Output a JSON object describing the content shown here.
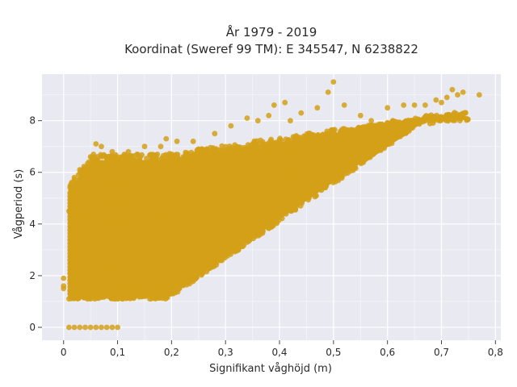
{
  "chart_data": {
    "type": "scatter",
    "title": "År 1979 - 2019",
    "subtitle": "Koordinat (Sweref 99 TM): E 345547, N 6238822",
    "xlabel": "Signifikant våghöjd (m)",
    "ylabel": "Vågperiod (s)",
    "xlim": [
      -0.04,
      0.81
    ],
    "ylim": [
      -0.5,
      9.8
    ],
    "xticks": [
      0,
      0.1,
      0.2,
      0.3,
      0.4,
      0.5,
      0.6,
      0.7,
      0.8
    ],
    "xtick_labels": [
      "0",
      "0,1",
      "0,2",
      "0,3",
      "0,4",
      "0,5",
      "0,6",
      "0,7",
      "0,8"
    ],
    "yticks": [
      0,
      2,
      4,
      6,
      8
    ],
    "ytick_labels": [
      "0",
      "2",
      "4",
      "6",
      "8"
    ],
    "grid": true,
    "legend": "none",
    "colors": {
      "marker": "#d4a017",
      "plot_background": "#e9e9f1",
      "grid": "#ffffff"
    },
    "series": [
      {
        "points": [
          [
            0.0,
            1.9
          ],
          [
            0.0,
            1.6
          ],
          [
            0.0,
            1.5
          ],
          [
            0.01,
            0.0
          ],
          [
            0.02,
            0.0
          ],
          [
            0.03,
            0.0
          ],
          [
            0.04,
            0.0
          ],
          [
            0.05,
            0.0
          ],
          [
            0.06,
            0.0
          ],
          [
            0.07,
            0.0
          ],
          [
            0.08,
            0.0
          ],
          [
            0.09,
            0.0
          ],
          [
            0.1,
            0.0
          ],
          [
            0.01,
            4.5
          ],
          [
            0.01,
            1.1
          ],
          [
            0.02,
            5.8
          ],
          [
            0.03,
            6.1
          ],
          [
            0.05,
            6.6
          ],
          [
            0.06,
            7.1
          ],
          [
            0.07,
            7.0
          ],
          [
            0.09,
            6.8
          ],
          [
            0.12,
            6.8
          ],
          [
            0.15,
            7.0
          ],
          [
            0.18,
            7.0
          ],
          [
            0.19,
            7.3
          ],
          [
            0.21,
            7.2
          ],
          [
            0.24,
            7.2
          ],
          [
            0.28,
            7.5
          ],
          [
            0.31,
            7.8
          ],
          [
            0.34,
            8.1
          ],
          [
            0.36,
            8.0
          ],
          [
            0.38,
            8.2
          ],
          [
            0.39,
            8.6
          ],
          [
            0.41,
            8.7
          ],
          [
            0.42,
            8.0
          ],
          [
            0.44,
            8.3
          ],
          [
            0.47,
            8.5
          ],
          [
            0.49,
            9.1
          ],
          [
            0.5,
            9.5
          ],
          [
            0.52,
            8.6
          ],
          [
            0.55,
            8.2
          ],
          [
            0.57,
            8.0
          ],
          [
            0.6,
            8.5
          ],
          [
            0.61,
            8.0
          ],
          [
            0.63,
            8.6
          ],
          [
            0.65,
            8.6
          ],
          [
            0.67,
            8.6
          ],
          [
            0.69,
            8.8
          ],
          [
            0.7,
            8.7
          ],
          [
            0.71,
            8.9
          ],
          [
            0.72,
            9.2
          ],
          [
            0.73,
            9.0
          ],
          [
            0.74,
            9.1
          ],
          [
            0.77,
            9.0
          ],
          [
            0.05,
            1.1
          ],
          [
            0.1,
            1.1
          ],
          [
            0.15,
            1.2
          ],
          [
            0.19,
            1.2
          ],
          [
            0.21,
            1.5
          ],
          [
            0.24,
            2.0
          ],
          [
            0.27,
            2.6
          ],
          [
            0.3,
            3.2
          ],
          [
            0.33,
            3.8
          ],
          [
            0.36,
            4.4
          ],
          [
            0.39,
            5.0
          ],
          [
            0.42,
            5.4
          ],
          [
            0.45,
            5.7
          ],
          [
            0.48,
            6.0
          ],
          [
            0.52,
            6.3
          ],
          [
            0.56,
            6.7
          ],
          [
            0.6,
            7.1
          ],
          [
            0.64,
            7.6
          ],
          [
            0.67,
            8.0
          ]
        ]
      }
    ]
  }
}
